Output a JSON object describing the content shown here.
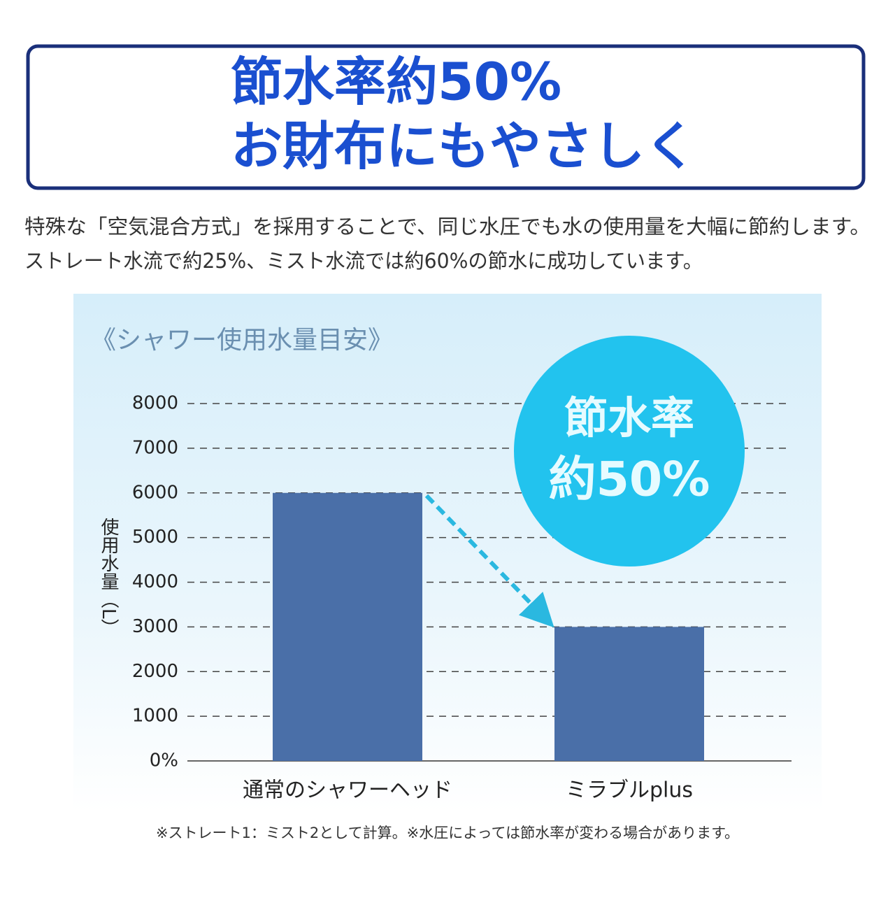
{
  "headline": {
    "lines": [
      "節水率約50%",
      "お財布にもやさしく"
    ]
  },
  "description": {
    "lines": [
      "特殊な「空気混合方式」を採用することで、同じ水圧でも水の使用量を大幅に節約します。",
      "ストレート水流で約25%、ミスト水流では約60%の節水に成功しています。"
    ]
  },
  "chart_data": {
    "type": "bar",
    "title": "《シャワー使用水量目安》",
    "y_label": "使用水量（L）",
    "categories": [
      "通常のシャワーヘッド",
      "ミラブルplus"
    ],
    "values": [
      6000,
      3000
    ],
    "color": "#4a6fa8",
    "ylim": [
      0,
      8000
    ],
    "yticks": [
      {
        "value": 0,
        "label": "0%"
      },
      1000,
      2000,
      3000,
      4000,
      5000,
      6000,
      7000,
      8000
    ],
    "grid": true,
    "annotation": {
      "lines": [
        "節水率",
        "約50%"
      ],
      "color": "#22c3ee"
    }
  },
  "footnote": "※ストレート1：ミスト2として計算。※水圧によっては節水率が変わる場合があります。"
}
